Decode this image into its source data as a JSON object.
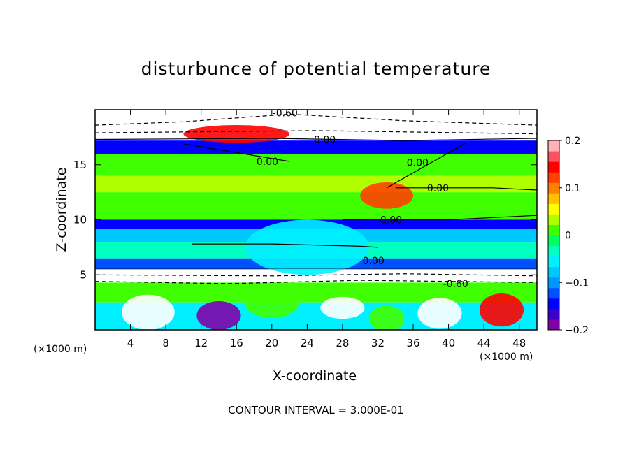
{
  "chart_data": {
    "type": "heatmap",
    "title": "disturbunce of potential temperature",
    "xlabel": "X-coordinate",
    "ylabel": "Z-coordinate",
    "x_unit_left": "(×1000 m)",
    "x_unit_right": "(×1000 m)",
    "xlim": [
      0,
      50
    ],
    "ylim": [
      0,
      20
    ],
    "x_ticks": [
      4,
      8,
      12,
      16,
      20,
      24,
      28,
      32,
      36,
      40,
      44,
      48
    ],
    "y_ticks": [
      5,
      10,
      15
    ],
    "colorbar": {
      "min": -0.2,
      "max": 0.2,
      "tick_values": [
        0.2,
        0.1,
        0,
        -0.1,
        -0.2
      ],
      "tick_labels": [
        "0.2",
        "0.1",
        "0",
        "−0.1",
        "−0.2"
      ],
      "colors": [
        "#8000a8",
        "#3c00c8",
        "#0000ff",
        "#0050ff",
        "#0096ff",
        "#00c8ff",
        "#00f0ff",
        "#00ffc0",
        "#00ff60",
        "#40ff00",
        "#b0ff00",
        "#ffff00",
        "#ffc000",
        "#ff8000",
        "#ff4000",
        "#ff0000",
        "#ff5060",
        "#ffb0b8"
      ]
    },
    "contour_interval": "CONTOUR INTERVAL = 3.000E-01",
    "contour_labels": [
      {
        "text": "-0.60",
        "x": 21.5,
        "z": 19.7
      },
      {
        "text": "0.00",
        "x": 26.0,
        "z": 17.3
      },
      {
        "text": "0.00",
        "x": 19.5,
        "z": 15.3
      },
      {
        "text": "0.00",
        "x": 36.5,
        "z": 15.2
      },
      {
        "text": "0.00",
        "x": 38.8,
        "z": 12.9
      },
      {
        "text": "0.00",
        "x": 33.5,
        "z": 10.0
      },
      {
        "text": "0.00",
        "x": 31.5,
        "z": 6.3
      },
      {
        "text": "-0.60",
        "x": 40.8,
        "z": 4.2
      }
    ],
    "bands": [
      {
        "z0": 0,
        "z1": 2.5,
        "value": -0.05
      },
      {
        "z0": 2.5,
        "z1": 4.3,
        "value": 0.01
      },
      {
        "z0": 4.3,
        "z1": 5.5,
        "value": -0.3
      },
      {
        "z0": 5.5,
        "z1": 6.5,
        "value": -0.13
      },
      {
        "z0": 6.5,
        "z1": 8.0,
        "value": -0.03
      },
      {
        "z0": 8.0,
        "z1": 9.2,
        "value": -0.08
      },
      {
        "z0": 9.2,
        "z1": 10.0,
        "value": -0.15
      },
      {
        "z0": 10.0,
        "z1": 12.5,
        "value": 0.02
      },
      {
        "z0": 12.5,
        "z1": 14.0,
        "value": 0.04
      },
      {
        "z0": 14.0,
        "z1": 16.0,
        "value": 0.02
      },
      {
        "z0": 16.0,
        "z1": 17.2,
        "value": -0.15
      },
      {
        "z0": 17.2,
        "z1": 18.0,
        "value": -0.3
      },
      {
        "z0": 18.0,
        "z1": 20.0,
        "value": 0.3
      }
    ],
    "anomalies": [
      {
        "x": 6,
        "z": 1.6,
        "rx": 3,
        "rz": 1.6,
        "value": 0.3
      },
      {
        "x": 14,
        "z": 1.3,
        "rx": 2.5,
        "rz": 1.3,
        "value": -0.2
      },
      {
        "x": 20,
        "z": 2.3,
        "rx": 3,
        "rz": 1.2,
        "value": 0.0
      },
      {
        "x": 28,
        "z": 2.0,
        "rx": 2.5,
        "rz": 1.0,
        "value": 0.3
      },
      {
        "x": 33,
        "z": 1.0,
        "rx": 2,
        "rz": 1.2,
        "value": 0.02
      },
      {
        "x": 39,
        "z": 1.5,
        "rx": 2.5,
        "rz": 1.4,
        "value": 0.3
      },
      {
        "x": 46,
        "z": 1.8,
        "rx": 2.5,
        "rz": 1.5,
        "value": 0.15
      },
      {
        "x": 24,
        "z": 7.5,
        "rx": 7,
        "rz": 2.5,
        "value": -0.05
      },
      {
        "x": 16,
        "z": 17.8,
        "rx": 6,
        "rz": 0.8,
        "value": 0.15
      },
      {
        "x": 33,
        "z": 12.2,
        "rx": 3,
        "rz": 1.2,
        "value": 0.13
      }
    ]
  }
}
